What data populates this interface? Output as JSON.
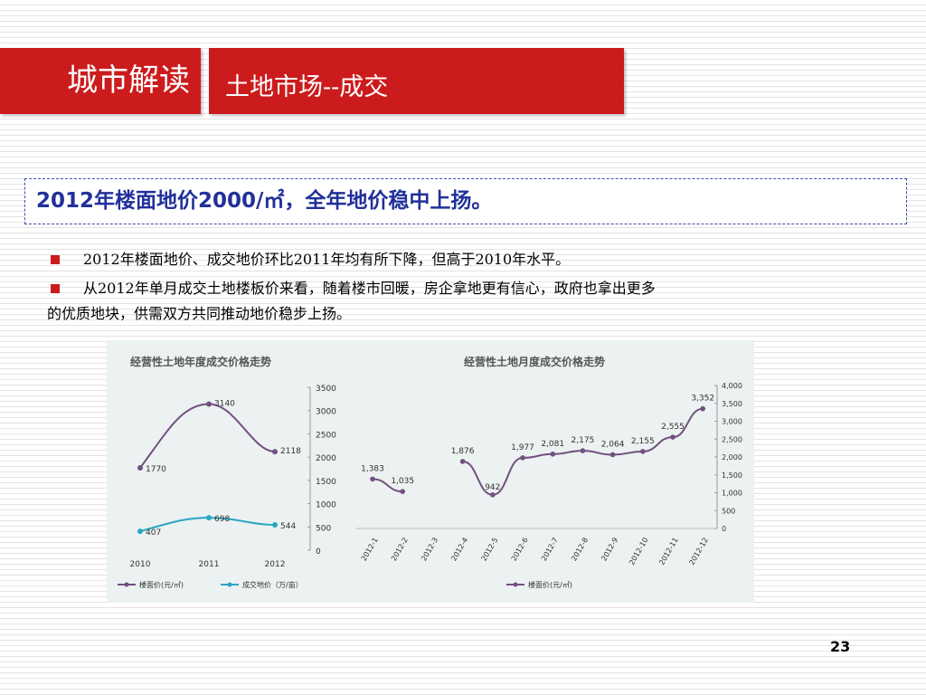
{
  "header": {
    "section": "城市解读",
    "topic": "土地市场--成交"
  },
  "headline": "2012年楼面地价2000/㎡，全年地价稳中上扬。",
  "bullets": [
    "2012年楼面地价、成交地价环比2011年均有所下降，但高于2010年水平。",
    "从2012年单月成交土地楼板价来看，随着楼市回暖，房企拿地更有信心，政府也拿出更多",
    "的优质地块，供需双方共同推动地价稳步上扬。"
  ],
  "colors": {
    "header_red": "#cc1b1c",
    "headline_blue": "#21309a",
    "series_purple": "#70517f",
    "series_cyan": "#2aa6c5"
  },
  "chart_data": [
    {
      "type": "line",
      "title": "经营性土地年度成交价格走势",
      "x": [
        "2010",
        "2011",
        "2012"
      ],
      "series": [
        {
          "name": "楼面价(元/㎡)",
          "values": [
            1770,
            3140,
            2118
          ],
          "labels": [
            "1770",
            "3140",
            "2118"
          ]
        },
        {
          "name": "成交地价（万/亩）",
          "values": [
            407,
            698,
            544
          ],
          "labels": [
            "407",
            "698",
            "544"
          ]
        }
      ],
      "ylim": [
        0,
        3500
      ],
      "yticks": [
        "0",
        "500",
        "1000",
        "1500",
        "2000",
        "2500",
        "3000",
        "3500"
      ],
      "grid": false,
      "legend": "bottom"
    },
    {
      "type": "line",
      "title": "经营性土地月度成交价格走势",
      "x": [
        "2012-1",
        "2012-2",
        "2012-3",
        "2012-4",
        "2012-5",
        "2012-6",
        "2012-7",
        "2012-8",
        "2012-9",
        "2012-10",
        "2012-11",
        "2012-12"
      ],
      "series": [
        {
          "name": "楼面价(元/㎡)",
          "values": [
            1383,
            1035,
            null,
            1876,
            942,
            1977,
            2081,
            2175,
            2064,
            2155,
            2555,
            3352
          ],
          "labels": [
            "1,383",
            "1,035",
            "",
            "1,876",
            "942",
            "1,977",
            "2,081",
            "2,175",
            "2,064",
            "2,155",
            "2,555",
            "3,352"
          ]
        }
      ],
      "ylim": [
        0,
        4000
      ],
      "yticks": [
        "0",
        "500",
        "1,000",
        "1,500",
        "2,000",
        "2,500",
        "3,000",
        "3,500",
        "4,000"
      ],
      "grid": false,
      "legend": "bottom"
    }
  ],
  "page_number": "23"
}
